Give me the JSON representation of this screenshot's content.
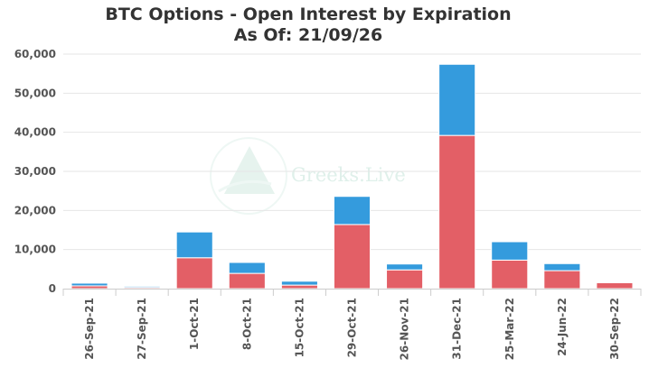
{
  "chart_data": {
    "type": "bar",
    "stacked": true,
    "title": "BTC Options - Open Interest by Expiration",
    "subtitle": "As Of: 21/09/26",
    "watermark": "Greeks.Live",
    "categories": [
      "26-Sep-21",
      "27-Sep-21",
      "1-Oct-21",
      "8-Oct-21",
      "15-Oct-21",
      "29-Oct-21",
      "26-Nov-21",
      "31-Dec-21",
      "25-Mar-22",
      "24-Jun-22",
      "30-Sep-22"
    ],
    "series": [
      {
        "color": "#e35f66",
        "values": [
          700,
          300,
          7900,
          3900,
          900,
          16400,
          4800,
          39200,
          7300,
          4600,
          1500
        ]
      },
      {
        "color": "#349bdd",
        "values": [
          700,
          300,
          6600,
          2800,
          1000,
          7200,
          1500,
          18200,
          4700,
          1800,
          0
        ]
      }
    ],
    "ylim": [
      0,
      60000
    ],
    "yticks": [
      0,
      10000,
      20000,
      30000,
      40000,
      50000,
      60000
    ],
    "ytick_labels": [
      "0",
      "10,000",
      "20,000",
      "30,000",
      "40,000",
      "50,000",
      "60,000"
    ],
    "xlabel": "",
    "ylabel": "",
    "grid": true,
    "legend": "none"
  }
}
